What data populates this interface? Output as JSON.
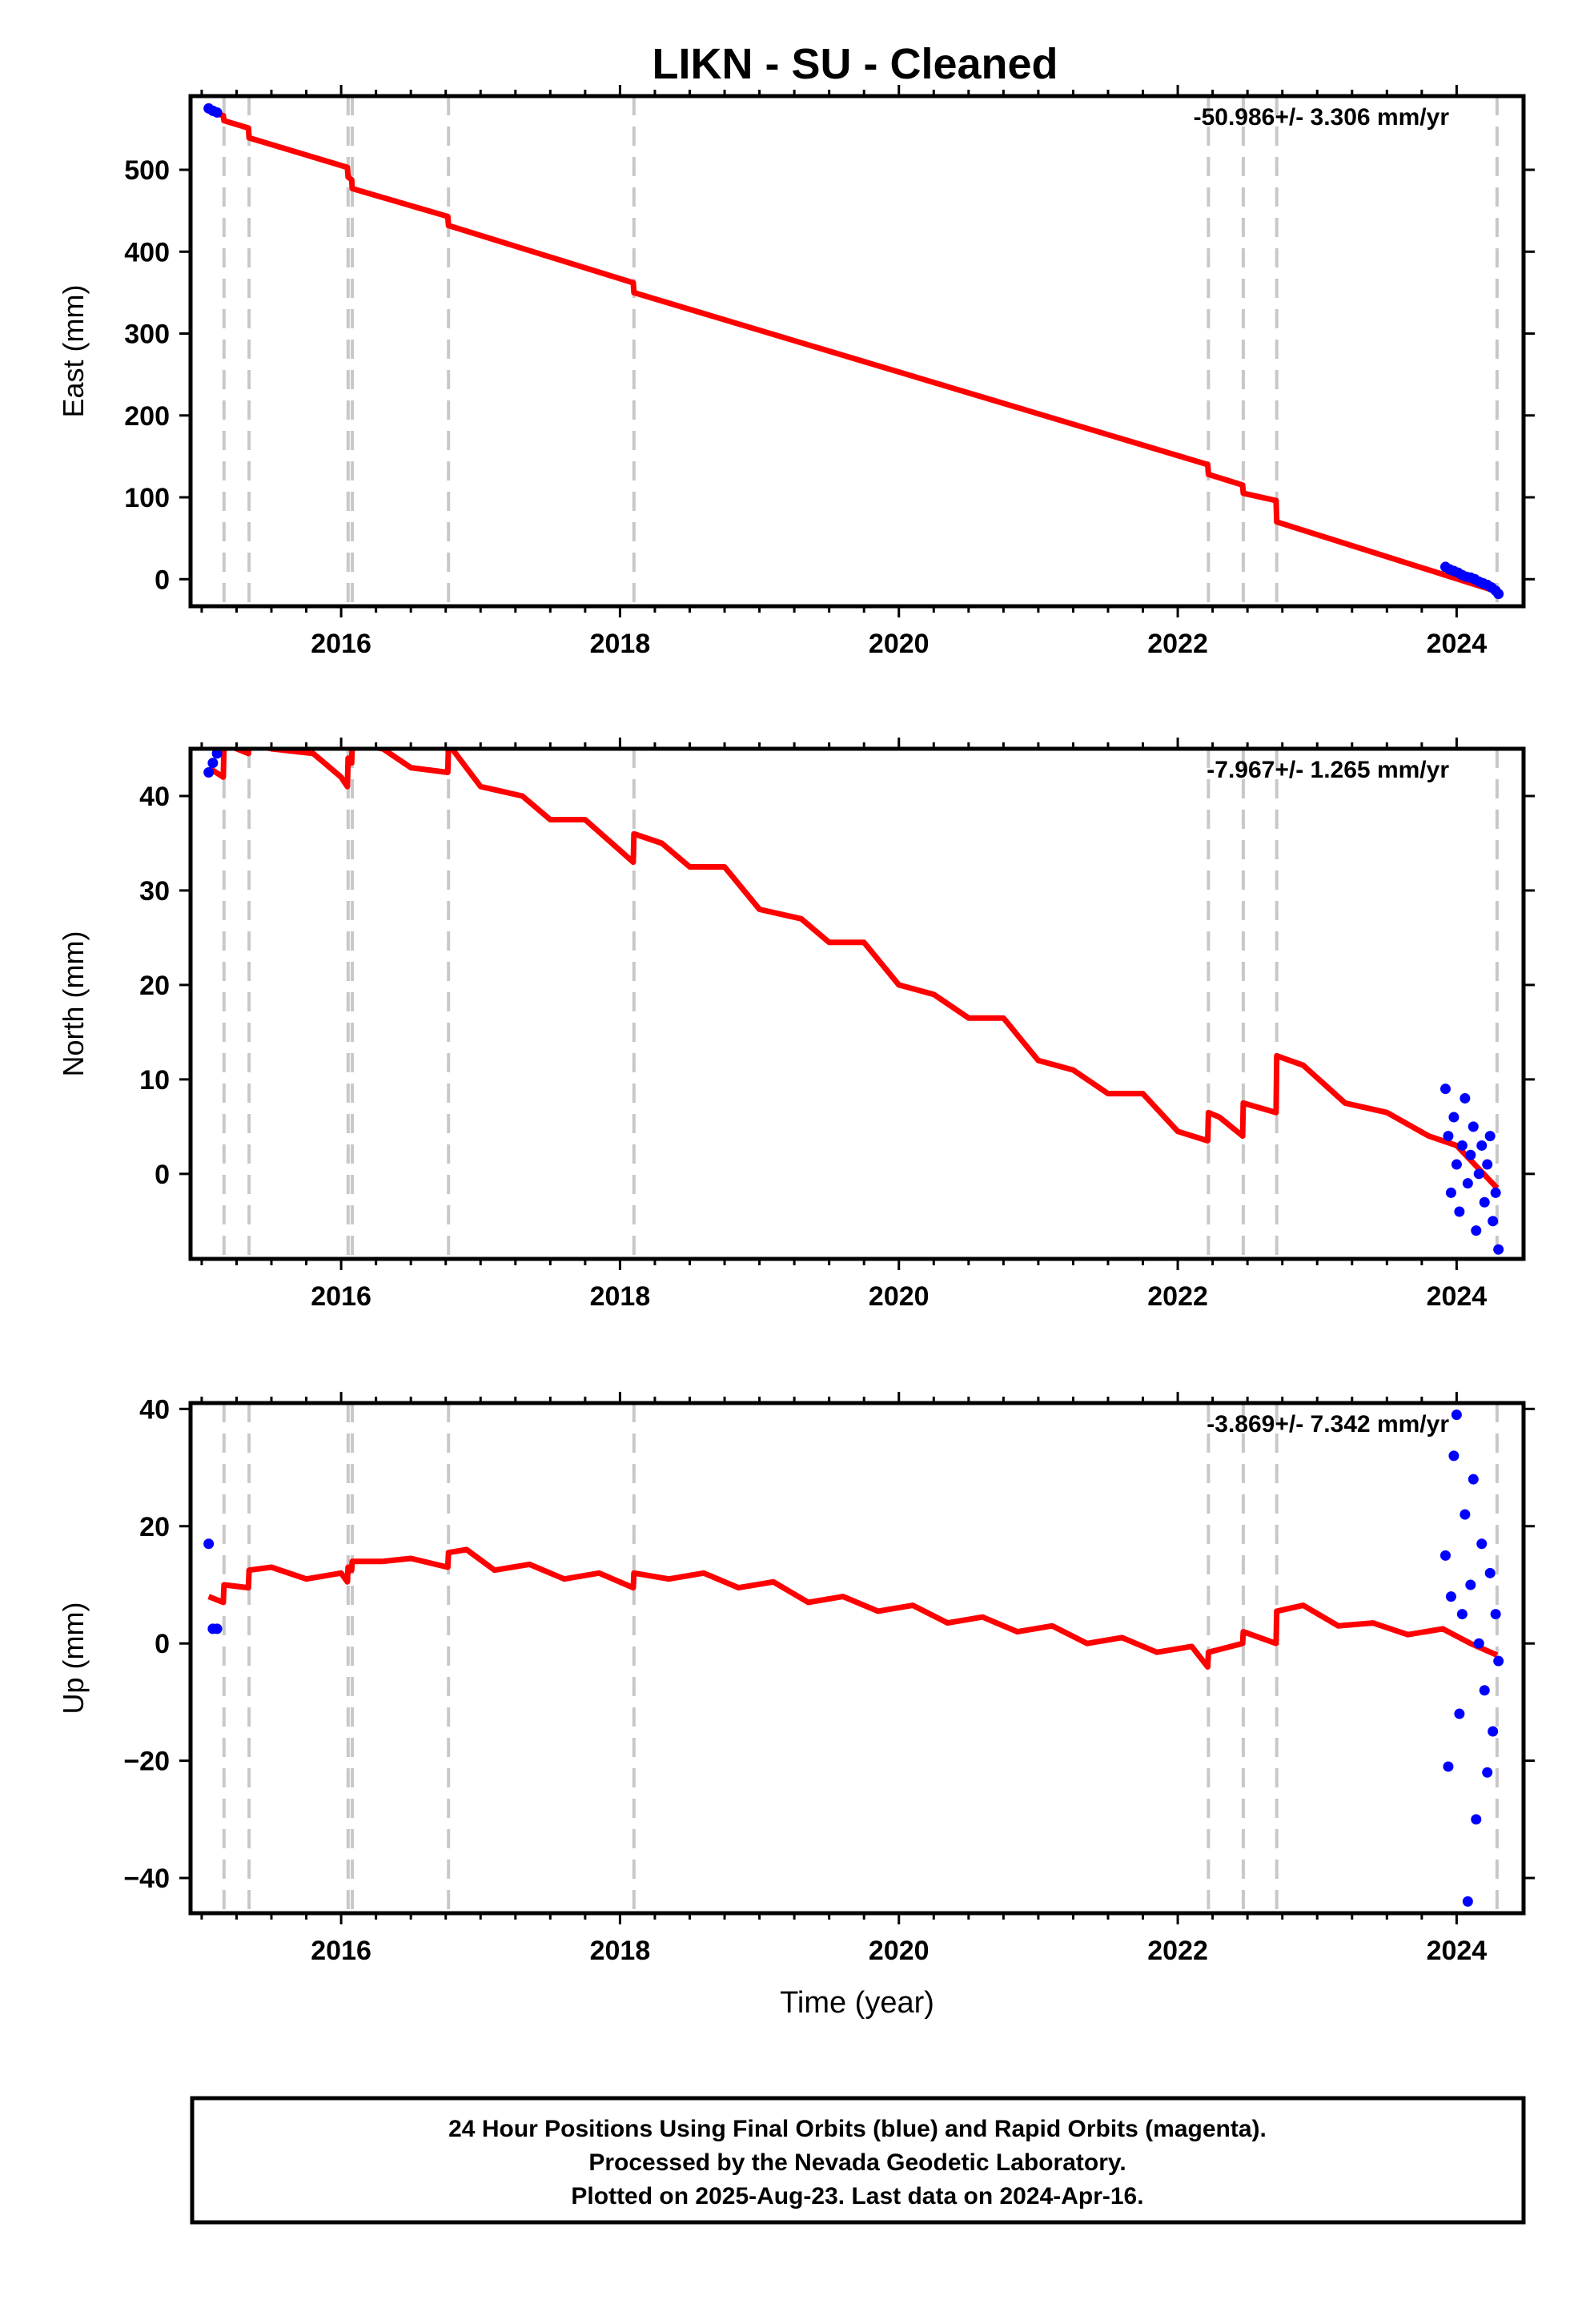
{
  "title": "LIKN  - SU - Cleaned",
  "colors": {
    "fit": "#ff0000",
    "final_orbits": "#0000ff",
    "rapid_orbits": "#ff00ff",
    "event_lines": "#c8c8c8"
  },
  "chart_data": [
    {
      "type": "line",
      "component": "east",
      "ylabel": "East (mm)",
      "xlabel": "",
      "rate_text": "-50.986+/- 3.306 mm/yr",
      "xlim": [
        2014.92,
        2024.48
      ],
      "ylim": [
        -33,
        590
      ],
      "xticks": [
        2016,
        2018,
        2020,
        2022,
        2024
      ],
      "xtick_labels": [
        "2016",
        "2018",
        "2020",
        "2022",
        "2024"
      ],
      "yticks": [
        0,
        100,
        200,
        300,
        400,
        500
      ],
      "ytick_labels": [
        "0",
        "100",
        "200",
        "300",
        "400",
        "500"
      ],
      "event_lines": [
        2015.16,
        2015.34,
        2016.05,
        2016.08,
        2016.77,
        2018.1,
        2022.22,
        2022.47,
        2022.71,
        2024.29
      ],
      "fit": {
        "x": [
          2015.05,
          2015.155,
          2015.16,
          2015.335,
          2015.34,
          2016.045,
          2016.05,
          2016.075,
          2016.08,
          2016.765,
          2016.77,
          2018.095,
          2018.1,
          2022.215,
          2022.22,
          2022.465,
          2022.47,
          2022.705,
          2022.71,
          2024.29
        ],
        "y": [
          572,
          566,
          560,
          551,
          539,
          503,
          491,
          488,
          477,
          443,
          432,
          362,
          350,
          140,
          128,
          115,
          105,
          96,
          70,
          -15
        ]
      },
      "points": {
        "x": [
          2015.05,
          2015.08,
          2015.11,
          2023.92,
          2023.95,
          2023.98,
          2024.01,
          2024.04,
          2024.07,
          2024.1,
          2024.13,
          2024.16,
          2024.19,
          2024.22,
          2024.25,
          2024.28,
          2024.3
        ],
        "y": [
          575,
          572,
          570,
          15,
          12,
          10,
          8,
          5,
          3,
          2,
          0,
          -3,
          -5,
          -7,
          -10,
          -14,
          -18
        ]
      }
    },
    {
      "type": "line",
      "component": "north",
      "ylabel": "North (mm)",
      "xlabel": "",
      "rate_text": "-7.967+/- 1.265 mm/yr",
      "xlim": [
        2014.92,
        2024.48
      ],
      "ylim": [
        -9,
        45
      ],
      "xticks": [
        2016,
        2018,
        2020,
        2022,
        2024
      ],
      "xtick_labels": [
        "2016",
        "2018",
        "2020",
        "2022",
        "2024"
      ],
      "yticks": [
        0,
        10,
        20,
        30,
        40
      ],
      "ytick_labels": [
        "0",
        "10",
        "20",
        "30",
        "40"
      ],
      "event_lines": [
        2015.16,
        2015.34,
        2016.05,
        2016.08,
        2016.77,
        2018.1,
        2022.22,
        2022.47,
        2022.71,
        2024.29
      ],
      "fit": {
        "x": [
          2015.05,
          2015.155,
          2015.16,
          2015.25,
          2015.335,
          2015.34,
          2015.5,
          2015.8,
          2016.0,
          2016.045,
          2016.05,
          2016.075,
          2016.08,
          2016.3,
          2016.5,
          2016.765,
          2016.77,
          2017.0,
          2017.3,
          2017.5,
          2017.75,
          2018.095,
          2018.1,
          2018.3,
          2018.5,
          2018.75,
          2019.0,
          2019.3,
          2019.5,
          2019.75,
          2020.0,
          2020.25,
          2020.5,
          2020.75,
          2021.0,
          2021.25,
          2021.5,
          2021.75,
          2022.0,
          2022.215,
          2022.22,
          2022.3,
          2022.465,
          2022.47,
          2022.705,
          2022.71,
          2022.9,
          2023.2,
          2023.5,
          2023.8,
          2024.0,
          2024.29
        ],
        "y": [
          43,
          42,
          45.5,
          45,
          44.5,
          45.5,
          45,
          44.5,
          42,
          41,
          44,
          43.5,
          45.5,
          45,
          43,
          42.5,
          45.5,
          41,
          40,
          37.5,
          37.5,
          33,
          36,
          35,
          32.5,
          32.5,
          28,
          27,
          24.5,
          24.5,
          20,
          19,
          16.5,
          16.5,
          12,
          11,
          8.5,
          8.5,
          4.5,
          3.5,
          6.5,
          6,
          4,
          7.5,
          6.5,
          12.5,
          11.5,
          7.5,
          6.5,
          4,
          3,
          -1.5
        ]
      },
      "points": {
        "x": [
          2015.05,
          2015.08,
          2015.11,
          2023.92,
          2023.94,
          2023.96,
          2023.98,
          2024.0,
          2024.02,
          2024.04,
          2024.06,
          2024.08,
          2024.1,
          2024.12,
          2024.14,
          2024.16,
          2024.18,
          2024.2,
          2024.22,
          2024.24,
          2024.26,
          2024.28,
          2024.3
        ],
        "y": [
          42.5,
          43.5,
          44.5,
          9,
          4,
          -2,
          6,
          1,
          -4,
          3,
          8,
          -1,
          2,
          5,
          -6,
          0,
          3,
          -3,
          1,
          4,
          -5,
          -2,
          -8
        ]
      }
    },
    {
      "type": "line",
      "component": "up",
      "ylabel": "Up (mm)",
      "xlabel": "Time (year)",
      "rate_text": "-3.869+/- 7.342 mm/yr",
      "xlim": [
        2014.92,
        2024.48
      ],
      "ylim": [
        -46,
        41
      ],
      "xticks": [
        2016,
        2018,
        2020,
        2022,
        2024
      ],
      "xtick_labels": [
        "2016",
        "2018",
        "2020",
        "2022",
        "2024"
      ],
      "yticks": [
        -40,
        -20,
        0,
        20,
        40
      ],
      "ytick_labels": [
        "−40",
        "−20",
        "0",
        "20",
        "40"
      ],
      "event_lines": [
        2015.16,
        2015.34,
        2016.05,
        2016.08,
        2016.77,
        2018.1,
        2022.22,
        2022.47,
        2022.71,
        2024.29
      ],
      "fit": {
        "x": [
          2015.05,
          2015.155,
          2015.16,
          2015.335,
          2015.34,
          2015.5,
          2015.75,
          2016.0,
          2016.045,
          2016.05,
          2016.075,
          2016.08,
          2016.3,
          2016.5,
          2016.765,
          2016.77,
          2016.9,
          2017.1,
          2017.35,
          2017.6,
          2017.85,
          2018.095,
          2018.1,
          2018.35,
          2018.6,
          2018.85,
          2019.1,
          2019.35,
          2019.6,
          2019.85,
          2020.1,
          2020.35,
          2020.6,
          2020.85,
          2021.1,
          2021.35,
          2021.6,
          2021.85,
          2022.1,
          2022.215,
          2022.22,
          2022.465,
          2022.47,
          2022.705,
          2022.71,
          2022.9,
          2023.15,
          2023.4,
          2023.65,
          2023.9,
          2024.1,
          2024.29
        ],
        "y": [
          8,
          7,
          10,
          9.5,
          12.5,
          13,
          11,
          12,
          10.5,
          13,
          12.5,
          14,
          14,
          14.5,
          13,
          15.5,
          16,
          12.5,
          13.5,
          11,
          12,
          9.5,
          12,
          11,
          12,
          9.5,
          10.5,
          7,
          8,
          5.5,
          6.5,
          3.5,
          4.5,
          2,
          3,
          0,
          1,
          -1.5,
          -0.5,
          -4,
          -1.5,
          0,
          2,
          0,
          5.5,
          6.5,
          3,
          3.5,
          1.5,
          2.5,
          0,
          -2
        ]
      },
      "points": {
        "x": [
          2015.05,
          2015.08,
          2015.11,
          2023.92,
          2023.94,
          2023.96,
          2023.98,
          2024.0,
          2024.02,
          2024.04,
          2024.06,
          2024.08,
          2024.1,
          2024.12,
          2024.14,
          2024.16,
          2024.18,
          2024.2,
          2024.22,
          2024.24,
          2024.26,
          2024.28,
          2024.3
        ],
        "y": [
          17,
          2.5,
          2.5,
          15,
          -21,
          8,
          32,
          39,
          -12,
          5,
          22,
          -44,
          10,
          28,
          -30,
          0,
          17,
          -8,
          -22,
          12,
          -15,
          5,
          -3
        ]
      }
    }
  ],
  "footer": {
    "line1": "24 Hour Positions Using Final Orbits (blue) and Rapid Orbits (magenta).",
    "line2": "Processed by the Nevada Geodetic Laboratory.",
    "line3": "Plotted on 2025-Aug-23. Last data on 2024-Apr-16."
  }
}
